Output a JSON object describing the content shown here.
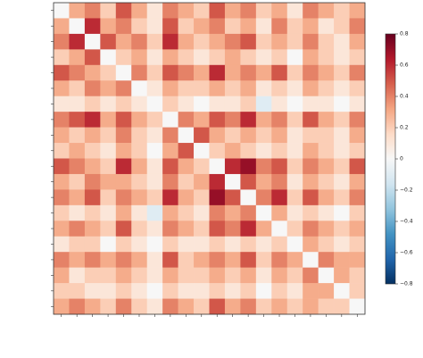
{
  "chart_data": {
    "type": "heatmap",
    "categories": [
      null,
      null,
      null,
      null,
      null,
      null,
      null,
      null,
      null,
      null,
      null,
      null,
      null,
      null,
      null,
      null,
      null,
      null,
      null,
      null
    ],
    "values": [
      [
        0,
        0.3,
        0.4,
        0.2,
        0.5,
        0.3,
        0.1,
        0.4,
        0.3,
        0.2,
        0.5,
        0.3,
        0.4,
        0.2,
        0.3,
        0.1,
        0.4,
        0.3,
        0.2,
        0.3
      ],
      [
        0.3,
        0,
        0.6,
        0.3,
        0.4,
        0.2,
        0.1,
        0.5,
        0.2,
        0.3,
        0.4,
        0.2,
        0.3,
        0.1,
        0.4,
        0.2,
        0.3,
        0.1,
        0.2,
        0.4
      ],
      [
        0.4,
        0.6,
        0,
        0.5,
        0.3,
        0.4,
        0.2,
        0.6,
        0.3,
        0.2,
        0.3,
        0.4,
        0.5,
        0.2,
        0.3,
        0.2,
        0.4,
        0.2,
        0.1,
        0.3
      ],
      [
        0.2,
        0.3,
        0.5,
        0,
        0.2,
        0.3,
        0.1,
        0.3,
        0.2,
        0.1,
        0.2,
        0.3,
        0.2,
        0.1,
        0.2,
        0.0,
        0.3,
        0.2,
        0.1,
        0.2
      ],
      [
        0.5,
        0.4,
        0.3,
        0.2,
        0,
        0.4,
        0.2,
        0.5,
        0.4,
        0.3,
        0.6,
        0.3,
        0.4,
        0.3,
        0.5,
        0.2,
        0.4,
        0.3,
        0.2,
        0.4
      ],
      [
        0.3,
        0.2,
        0.4,
        0.3,
        0.4,
        0,
        0.1,
        0.3,
        0.2,
        0.2,
        0.3,
        0.2,
        0.3,
        0.1,
        0.2,
        0.1,
        0.3,
        0.2,
        0.1,
        0.2
      ],
      [
        0.1,
        0.1,
        0.2,
        0.1,
        0.2,
        0.1,
        0,
        0.2,
        0.1,
        0.0,
        0.1,
        0.1,
        0.2,
        -0.1,
        0.1,
        0.0,
        0.1,
        0.1,
        0.0,
        0.1
      ],
      [
        0.4,
        0.5,
        0.6,
        0.3,
        0.5,
        0.3,
        0.2,
        0,
        0.4,
        0.3,
        0.5,
        0.4,
        0.6,
        0.3,
        0.4,
        0.2,
        0.5,
        0.3,
        0.2,
        0.4
      ],
      [
        0.3,
        0.2,
        0.3,
        0.2,
        0.4,
        0.2,
        0.1,
        0.4,
        0,
        0.5,
        0.3,
        0.2,
        0.3,
        0.2,
        0.3,
        0.1,
        0.2,
        0.2,
        0.1,
        0.3
      ],
      [
        0.2,
        0.3,
        0.2,
        0.1,
        0.3,
        0.2,
        0.0,
        0.3,
        0.5,
        0,
        0.2,
        0.3,
        0.2,
        0.1,
        0.2,
        0.1,
        0.3,
        0.2,
        0.1,
        0.2
      ],
      [
        0.5,
        0.4,
        0.3,
        0.2,
        0.6,
        0.3,
        0.1,
        0.5,
        0.3,
        0.2,
        0,
        0.6,
        0.7,
        0.4,
        0.5,
        0.2,
        0.4,
        0.3,
        0.2,
        0.5
      ],
      [
        0.3,
        0.2,
        0.4,
        0.3,
        0.3,
        0.2,
        0.1,
        0.4,
        0.2,
        0.3,
        0.6,
        0,
        0.5,
        0.3,
        0.4,
        0.1,
        0.3,
        0.2,
        0.1,
        0.3
      ],
      [
        0.4,
        0.3,
        0.5,
        0.2,
        0.4,
        0.3,
        0.2,
        0.6,
        0.3,
        0.2,
        0.7,
        0.5,
        0,
        0.4,
        0.6,
        0.2,
        0.5,
        0.3,
        0.2,
        0.4
      ],
      [
        0.2,
        0.1,
        0.2,
        0.1,
        0.3,
        0.1,
        -0.1,
        0.3,
        0.2,
        0.1,
        0.4,
        0.3,
        0.4,
        0,
        0.3,
        0.1,
        0.2,
        0.1,
        0.0,
        0.2
      ],
      [
        0.3,
        0.4,
        0.3,
        0.2,
        0.5,
        0.2,
        0.1,
        0.4,
        0.3,
        0.2,
        0.5,
        0.4,
        0.6,
        0.3,
        0,
        0.2,
        0.4,
        0.3,
        0.2,
        0.3
      ],
      [
        0.1,
        0.2,
        0.2,
        0.0,
        0.2,
        0.1,
        0.0,
        0.2,
        0.1,
        0.1,
        0.2,
        0.1,
        0.2,
        0.1,
        0.2,
        0,
        0.3,
        0.2,
        0.1,
        0.2
      ],
      [
        0.4,
        0.3,
        0.4,
        0.3,
        0.4,
        0.3,
        0.1,
        0.5,
        0.2,
        0.3,
        0.4,
        0.3,
        0.5,
        0.2,
        0.4,
        0.3,
        0,
        0.4,
        0.3,
        0.3
      ],
      [
        0.3,
        0.1,
        0.2,
        0.2,
        0.3,
        0.2,
        0.1,
        0.3,
        0.2,
        0.2,
        0.3,
        0.2,
        0.3,
        0.1,
        0.3,
        0.2,
        0.4,
        0,
        0.3,
        0.2
      ],
      [
        0.2,
        0.2,
        0.1,
        0.1,
        0.2,
        0.1,
        0.0,
        0.2,
        0.1,
        0.1,
        0.2,
        0.1,
        0.2,
        0.0,
        0.2,
        0.1,
        0.3,
        0.3,
        0,
        0.2
      ],
      [
        0.3,
        0.4,
        0.3,
        0.2,
        0.4,
        0.2,
        0.1,
        0.4,
        0.3,
        0.2,
        0.5,
        0.3,
        0.4,
        0.2,
        0.3,
        0.2,
        0.3,
        0.2,
        0.2,
        0
      ]
    ],
    "colormap": [
      "#053061",
      "#2166ac",
      "#4393c3",
      "#92c5de",
      "#d1e5f0",
      "#f7f7f7",
      "#fddbc7",
      "#f4a582",
      "#d6604d",
      "#b2182b",
      "#67001f"
    ],
    "clim": [
      -0.8,
      0.8
    ],
    "cticks": [
      {
        "value": -0.8,
        "label": "−0.8"
      },
      {
        "value": -0.6,
        "label": "−0.6"
      },
      {
        "value": -0.4,
        "label": "−0.4"
      },
      {
        "value": -0.2,
        "label": "−0.2"
      },
      0,
      0.2,
      0.4,
      0.6,
      0.8
    ]
  }
}
